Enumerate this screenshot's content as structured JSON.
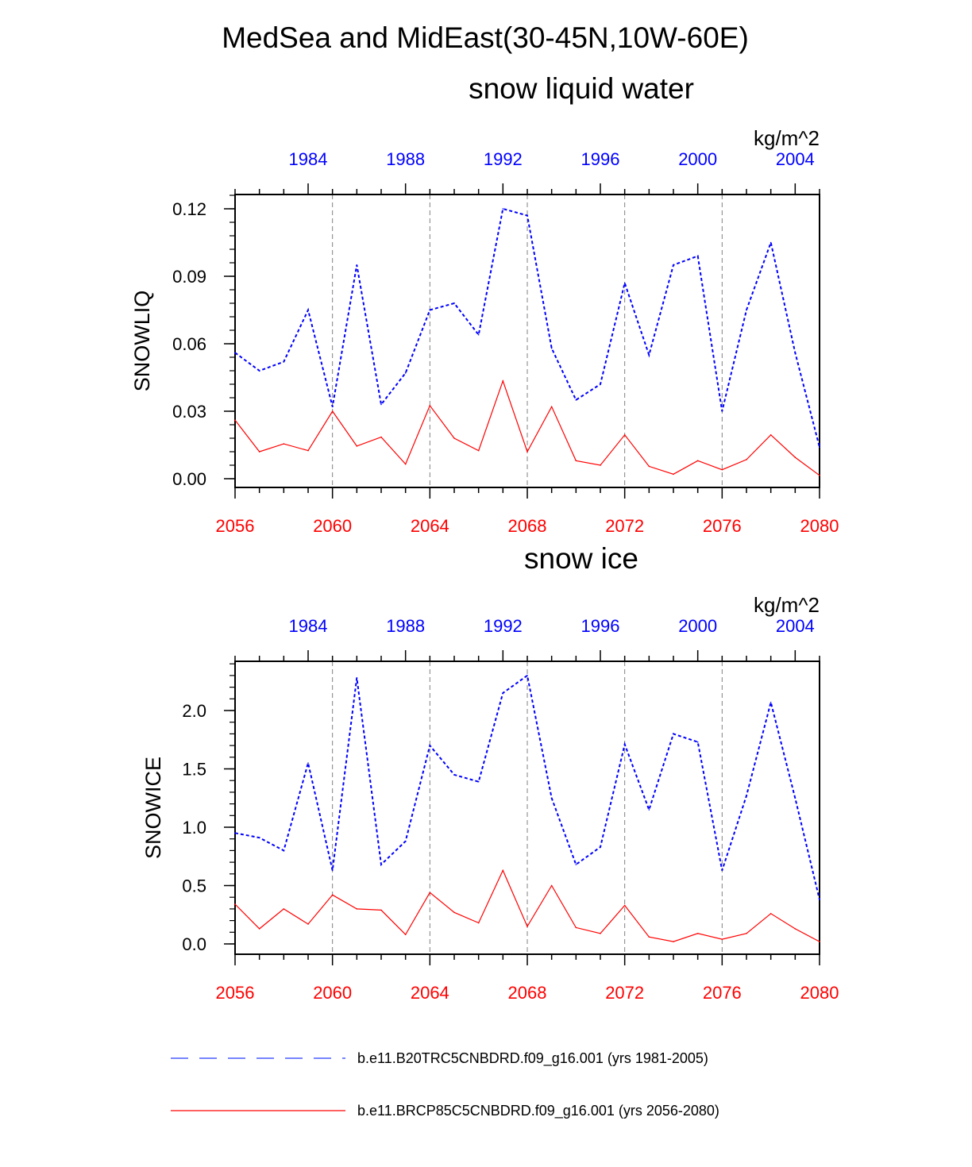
{
  "figure": {
    "title": "MedSea and MidEast(30-45N,10W-60E)"
  },
  "colors": {
    "historical": "#0000ff",
    "future": "#ff0000",
    "axis": "#000000",
    "grid": "#808080"
  },
  "chart_data": [
    {
      "type": "line",
      "title": "snow liquid water",
      "ylabel": "SNOWLIQ",
      "units": "kg/m^2",
      "x_bottom": [
        2056,
        2057,
        2058,
        2059,
        2060,
        2061,
        2062,
        2063,
        2064,
        2065,
        2066,
        2067,
        2068,
        2069,
        2070,
        2071,
        2072,
        2073,
        2074,
        2075,
        2076,
        2077,
        2078,
        2079,
        2080
      ],
      "x_top": [
        1981,
        1982,
        1983,
        1984,
        1985,
        1986,
        1987,
        1988,
        1989,
        1990,
        1991,
        1992,
        1993,
        1994,
        1995,
        1996,
        1997,
        1998,
        1999,
        2000,
        2001,
        2002,
        2003,
        2004,
        2005
      ],
      "bottom_ticks": [
        "2056",
        "2060",
        "2064",
        "2068",
        "2072",
        "2076",
        "2080"
      ],
      "top_ticks": [
        "1984",
        "1988",
        "1992",
        "1996",
        "2000",
        "2004"
      ],
      "yticks": [
        "0.00",
        "0.03",
        "0.06",
        "0.09",
        "0.12"
      ],
      "ylim": [
        -0.004,
        0.126
      ],
      "grid": "vertical dashed lines at bottom major ticks",
      "series": [
        {
          "name": "b.e11.B20TRC5CNBDRD.f09_g16.001 (yrs 1981-2005)",
          "style": "dashed",
          "values": [
            0.056,
            0.048,
            0.052,
            0.075,
            0.032,
            0.095,
            0.033,
            0.047,
            0.075,
            0.078,
            0.064,
            0.12,
            0.117,
            0.058,
            0.035,
            0.042,
            0.087,
            0.055,
            0.095,
            0.099,
            0.03,
            0.075,
            0.105,
            0.056,
            0.014
          ]
        },
        {
          "name": "b.e11.BRCP85C5CNBDRD.f09_g16.001 (yrs 2056-2080)",
          "style": "solid",
          "values": [
            0.026,
            0.012,
            0.0155,
            0.0125,
            0.03,
            0.0145,
            0.0185,
            0.0065,
            0.0325,
            0.018,
            0.0125,
            0.0435,
            0.012,
            0.032,
            0.008,
            0.006,
            0.0195,
            0.0055,
            0.002,
            0.008,
            0.004,
            0.0085,
            0.0195,
            0.0095,
            0.0015
          ]
        }
      ]
    },
    {
      "type": "line",
      "title": "snow ice",
      "ylabel": "SNOWICE",
      "units": "kg/m^2",
      "x_bottom": [
        2056,
        2057,
        2058,
        2059,
        2060,
        2061,
        2062,
        2063,
        2064,
        2065,
        2066,
        2067,
        2068,
        2069,
        2070,
        2071,
        2072,
        2073,
        2074,
        2075,
        2076,
        2077,
        2078,
        2079,
        2080
      ],
      "x_top": [
        1981,
        1982,
        1983,
        1984,
        1985,
        1986,
        1987,
        1988,
        1989,
        1990,
        1991,
        1992,
        1993,
        1994,
        1995,
        1996,
        1997,
        1998,
        1999,
        2000,
        2001,
        2002,
        2003,
        2004,
        2005
      ],
      "bottom_ticks": [
        "2056",
        "2060",
        "2064",
        "2068",
        "2072",
        "2076",
        "2080"
      ],
      "top_ticks": [
        "1984",
        "1988",
        "1992",
        "1996",
        "2000",
        "2004"
      ],
      "yticks": [
        "0.0",
        "0.5",
        "1.0",
        "1.5",
        "2.0"
      ],
      "ylim": [
        -0.08,
        2.41
      ],
      "grid": "vertical dashed lines at bottom major ticks",
      "series": [
        {
          "name": "b.e11.B20TRC5CNBDRD.f09_g16.001 (yrs 1981-2005)",
          "style": "dashed",
          "values": [
            0.95,
            0.91,
            0.8,
            1.55,
            0.63,
            2.28,
            0.68,
            0.88,
            1.7,
            1.45,
            1.39,
            2.15,
            2.3,
            1.25,
            0.68,
            0.83,
            1.71,
            1.15,
            1.8,
            1.73,
            0.63,
            1.27,
            2.07,
            1.25,
            0.38
          ]
        },
        {
          "name": "b.e11.BRCP85C5CNBDRD.f09_g16.001 (yrs 2056-2080)",
          "style": "solid",
          "values": [
            0.34,
            0.13,
            0.3,
            0.17,
            0.42,
            0.3,
            0.29,
            0.08,
            0.44,
            0.27,
            0.18,
            0.63,
            0.15,
            0.5,
            0.14,
            0.09,
            0.33,
            0.06,
            0.02,
            0.09,
            0.04,
            0.09,
            0.26,
            0.13,
            0.02
          ]
        }
      ]
    }
  ],
  "legend": {
    "placement": "bottom",
    "items": [
      {
        "label": "b.e11.B20TRC5CNBDRD.f09_g16.001 (yrs 1981-2005)",
        "style": "dashed",
        "color": "#0000ff"
      },
      {
        "label": "b.e11.BRCP85C5CNBDRD.f09_g16.001 (yrs 2056-2080)",
        "style": "solid",
        "color": "#ff0000"
      }
    ]
  }
}
